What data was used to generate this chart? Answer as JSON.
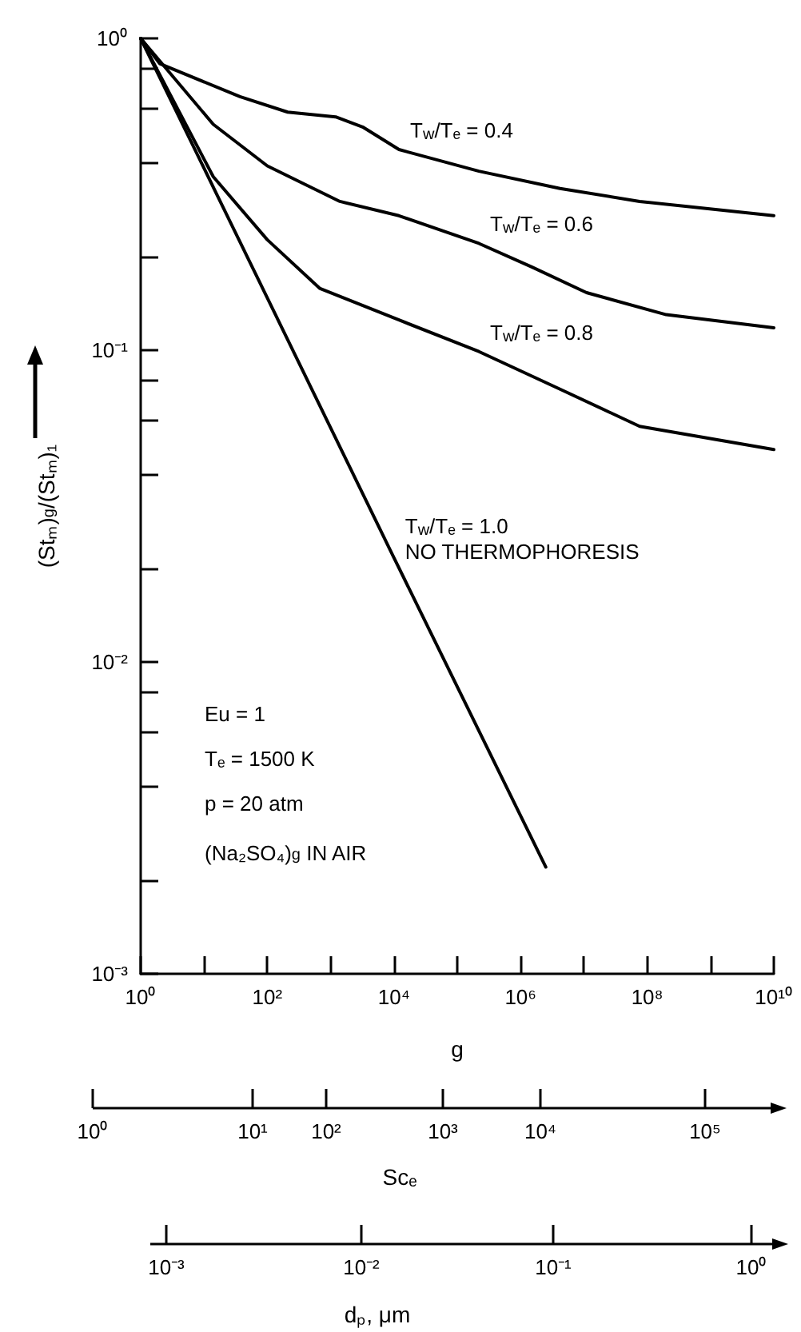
{
  "chart_data": {
    "type": "line",
    "log": "xy",
    "xlabel": "g",
    "ylabel": "(Stₘ)$_{g}$/(Stₘ)₁",
    "xlim": [
      1,
      10000000000
    ],
    "ylim": [
      0.001,
      1
    ],
    "xticks": [
      {
        "value": 1,
        "label": "10⁰"
      },
      {
        "value": 10,
        "label": null
      },
      {
        "value": 100,
        "label": "10²"
      },
      {
        "value": 1000,
        "label": null
      },
      {
        "value": 10000,
        "label": "10⁴"
      },
      {
        "value": 100000,
        "label": null
      },
      {
        "value": 1000000,
        "label": "10⁶"
      },
      {
        "value": 10000000,
        "label": null
      },
      {
        "value": 100000000,
        "label": "10⁸"
      },
      {
        "value": 1000000000,
        "label": null
      },
      {
        "value": 10000000000,
        "label": "10¹⁰"
      }
    ],
    "yticks": [
      {
        "value": 0.001,
        "label": "10⁻³"
      },
      {
        "value": 0.002,
        "label": null
      },
      {
        "value": 0.004,
        "label": null
      },
      {
        "value": 0.006,
        "label": null
      },
      {
        "value": 0.008,
        "label": null
      },
      {
        "value": 0.01,
        "label": "10⁻²"
      },
      {
        "value": 0.02,
        "label": null
      },
      {
        "value": 0.04,
        "label": null
      },
      {
        "value": 0.06,
        "label": null
      },
      {
        "value": 0.08,
        "label": null
      },
      {
        "value": 0.1,
        "label": "10⁻¹"
      },
      {
        "value": 0.2,
        "label": null
      },
      {
        "value": 0.4,
        "label": null
      },
      {
        "value": 0.6,
        "label": null
      },
      {
        "value": 0.8,
        "label": null
      },
      {
        "value": 1,
        "label": "10⁰"
      }
    ],
    "series": [
      {
        "name": "T$_{w}$/Tₑ = 0.4",
        "color": "#000000",
        "x": [
          1,
          2,
          37,
          210,
          1200,
          3200,
          12000,
          220000,
          4200000,
          76000000,
          10000000000
        ],
        "values": [
          1,
          0.83,
          0.65,
          0.58,
          0.56,
          0.52,
          0.44,
          0.375,
          0.33,
          0.3,
          0.27
        ]
      },
      {
        "name": "T$_{w}$/Tₑ = 0.6",
        "color": "#000000",
        "x": [
          1,
          14,
          100,
          1400,
          12000,
          220000,
          1500000,
          11000000,
          200000000,
          10000000000
        ],
        "values": [
          1,
          0.53,
          0.39,
          0.3,
          0.27,
          0.22,
          0.185,
          0.153,
          0.13,
          0.118
        ]
      },
      {
        "name": "T$_{w}$/Tₑ = 0.8",
        "color": "#000000",
        "x": [
          1,
          14,
          100,
          670,
          12000,
          220000,
          4200000,
          76000000,
          10000000000
        ],
        "values": [
          1,
          0.36,
          0.226,
          0.158,
          0.125,
          0.099,
          0.075,
          0.057,
          0.048
        ]
      },
      {
        "name": "T$_{w}$/Tₑ = 1.0\nNO THERMOPHORESIS",
        "color": "#000000",
        "x": [
          1,
          100,
          10000,
          2500000
        ],
        "values": [
          1,
          0.147,
          0.0216,
          0.0022
        ]
      }
    ],
    "annotations": [
      "Eu = 1",
      "Tₑ = 1500 K",
      "p = 20 atm",
      "(Na₂SO₄)$_{g}$ IN AIR",
      "10⁰",
      "10¹",
      "10²",
      "10³",
      "10⁴",
      "10⁵",
      "Scₑ",
      "10⁻³",
      "10⁻²",
      "10⁻¹",
      "10⁰",
      "dₚ, μm"
    ]
  }
}
